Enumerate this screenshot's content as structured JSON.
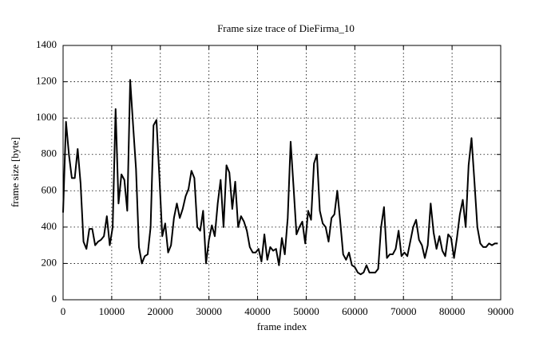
{
  "chart_data": {
    "type": "line",
    "title": "Frame size trace of DieFirma_10",
    "xlabel": "frame index",
    "ylabel": "frame size [byte]",
    "xlim": [
      0,
      90000
    ],
    "ylim": [
      0,
      1400
    ],
    "xticks": [
      0,
      10000,
      20000,
      30000,
      40000,
      50000,
      60000,
      70000,
      80000,
      90000
    ],
    "yticks": [
      0,
      200,
      400,
      600,
      800,
      1000,
      1200,
      1400
    ],
    "grid": true,
    "x": [
      0,
      600,
      1200,
      1800,
      2400,
      3000,
      3600,
      4200,
      4800,
      5400,
      6000,
      6600,
      7200,
      7800,
      8400,
      9000,
      9600,
      10200,
      10800,
      11400,
      12000,
      12600,
      13200,
      13800,
      14400,
      15000,
      15600,
      16200,
      16800,
      17400,
      18000,
      18600,
      19200,
      19800,
      20400,
      21000,
      21600,
      22200,
      22800,
      23400,
      24000,
      24600,
      25200,
      25800,
      26400,
      27000,
      27600,
      28200,
      28800,
      29400,
      30000,
      30600,
      31200,
      31800,
      32400,
      33000,
      33600,
      34200,
      34800,
      35400,
      36000,
      36600,
      37200,
      37800,
      38400,
      39000,
      39600,
      40200,
      40800,
      41400,
      42000,
      42600,
      43200,
      43800,
      44400,
      45000,
      45600,
      46200,
      46800,
      47400,
      48000,
      48600,
      49200,
      49800,
      50400,
      51000,
      51600,
      52200,
      52800,
      53400,
      54000,
      54600,
      55200,
      55800,
      56400,
      57000,
      57600,
      58200,
      58800,
      59400,
      60000,
      60600,
      61200,
      61800,
      62400,
      63000,
      63600,
      64200,
      64800,
      65400,
      66000,
      66600,
      67200,
      67800,
      68400,
      69000,
      69600,
      70200,
      70800,
      71400,
      72000,
      72600,
      73200,
      73800,
      74400,
      75000,
      75600,
      76200,
      76800,
      77400,
      78000,
      78600,
      79200,
      79800,
      80400,
      81000,
      81600,
      82200,
      82800,
      83400,
      84000,
      84600,
      85200,
      85800,
      86400,
      87000,
      87600,
      88200,
      88800,
      89400
    ],
    "series": [
      {
        "name": "frame size",
        "color": "#000000",
        "values": [
          480,
          980,
          800,
          670,
          670,
          830,
          640,
          320,
          280,
          390,
          390,
          300,
          320,
          330,
          350,
          460,
          300,
          400,
          1050,
          530,
          690,
          660,
          490,
          1210,
          960,
          720,
          290,
          200,
          240,
          250,
          400,
          960,
          990,
          680,
          350,
          420,
          260,
          300,
          450,
          530,
          450,
          500,
          570,
          610,
          710,
          670,
          400,
          380,
          490,
          200,
          330,
          410,
          350,
          530,
          660,
          400,
          740,
          700,
          500,
          650,
          400,
          460,
          430,
          380,
          290,
          260,
          260,
          280,
          210,
          360,
          220,
          290,
          270,
          280,
          190,
          340,
          250,
          450,
          870,
          620,
          360,
          400,
          430,
          310,
          490,
          440,
          750,
          800,
          490,
          420,
          400,
          320,
          450,
          470,
          600,
          430,
          250,
          220,
          260,
          190,
          180,
          150,
          140,
          150,
          190,
          150,
          150,
          150,
          170,
          400,
          510,
          230,
          250,
          250,
          280,
          380,
          240,
          260,
          240,
          320,
          400,
          440,
          330,
          300,
          230,
          300,
          530,
          370,
          280,
          350,
          270,
          240,
          360,
          340,
          230,
          340,
          470,
          550,
          400,
          740,
          890,
          650,
          400,
          310,
          290,
          290,
          310,
          300,
          310,
          310
        ]
      }
    ]
  }
}
